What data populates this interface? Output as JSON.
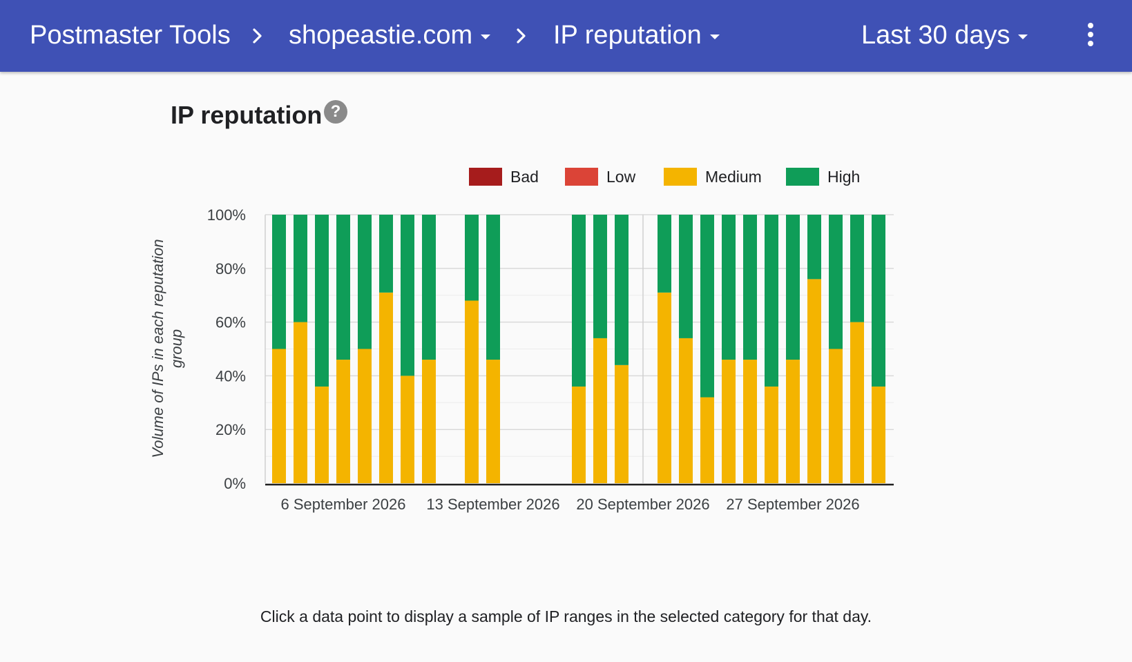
{
  "header": {
    "app_title": "Postmaster Tools",
    "domain": "shopeastie.com",
    "report": "IP reputation",
    "range": "Last 30 days",
    "background": "#3f51b5"
  },
  "page": {
    "title": "IP reputation",
    "help_glyph": "?",
    "footer_note": "Click a data point to display a sample of IP ranges in the selected category for that day."
  },
  "chart_data": {
    "type": "bar",
    "stacked": true,
    "ylabel": "Volume of IPs in each reputation group",
    "ylim": [
      0,
      100
    ],
    "y_ticks": [
      "0%",
      "20%",
      "40%",
      "60%",
      "80%",
      "100%"
    ],
    "x_ticks": [
      {
        "label": "6 September 2026",
        "date": "2026-09-06"
      },
      {
        "label": "13 September 2026",
        "date": "2026-09-13"
      },
      {
        "label": "20 September 2026",
        "date": "2026-09-20"
      },
      {
        "label": "27 September 2026",
        "date": "2026-09-27"
      }
    ],
    "legend": [
      {
        "name": "Bad",
        "color": "#a61c1c"
      },
      {
        "name": "Low",
        "color": "#db4437"
      },
      {
        "name": "Medium",
        "color": "#f4b400"
      },
      {
        "name": "High",
        "color": "#0f9d58"
      }
    ],
    "days": [
      {
        "date": "2026-09-03",
        "bad": 0,
        "low": 0,
        "medium": 50,
        "high": 50
      },
      {
        "date": "2026-09-04",
        "bad": 0,
        "low": 0,
        "medium": 60,
        "high": 40
      },
      {
        "date": "2026-09-05",
        "bad": 0,
        "low": 0,
        "medium": 36,
        "high": 64
      },
      {
        "date": "2026-09-06",
        "bad": 0,
        "low": 0,
        "medium": 46,
        "high": 54
      },
      {
        "date": "2026-09-07",
        "bad": 0,
        "low": 0,
        "medium": 50,
        "high": 50
      },
      {
        "date": "2026-09-08",
        "bad": 0,
        "low": 0,
        "medium": 71,
        "high": 29
      },
      {
        "date": "2026-09-09",
        "bad": 0,
        "low": 0,
        "medium": 40,
        "high": 60
      },
      {
        "date": "2026-09-10",
        "bad": 0,
        "low": 0,
        "medium": 46,
        "high": 54
      },
      {
        "date": "2026-09-12",
        "bad": 0,
        "low": 0,
        "medium": 68,
        "high": 32
      },
      {
        "date": "2026-09-13",
        "bad": 0,
        "low": 0,
        "medium": 46,
        "high": 54
      },
      {
        "date": "2026-09-17",
        "bad": 0,
        "low": 0,
        "medium": 36,
        "high": 64
      },
      {
        "date": "2026-09-18",
        "bad": 0,
        "low": 0,
        "medium": 54,
        "high": 46
      },
      {
        "date": "2026-09-19",
        "bad": 0,
        "low": 0,
        "medium": 44,
        "high": 56
      },
      {
        "date": "2026-09-21",
        "bad": 0,
        "low": 0,
        "medium": 71,
        "high": 29
      },
      {
        "date": "2026-09-22",
        "bad": 0,
        "low": 0,
        "medium": 54,
        "high": 46
      },
      {
        "date": "2026-09-23",
        "bad": 0,
        "low": 0,
        "medium": 32,
        "high": 68
      },
      {
        "date": "2026-09-24",
        "bad": 0,
        "low": 0,
        "medium": 46,
        "high": 54
      },
      {
        "date": "2026-09-25",
        "bad": 0,
        "low": 0,
        "medium": 46,
        "high": 54
      },
      {
        "date": "2026-09-26",
        "bad": 0,
        "low": 0,
        "medium": 36,
        "high": 64
      },
      {
        "date": "2026-09-27",
        "bad": 0,
        "low": 0,
        "medium": 46,
        "high": 54
      },
      {
        "date": "2026-09-28",
        "bad": 0,
        "low": 0,
        "medium": 76,
        "high": 24
      },
      {
        "date": "2026-09-29",
        "bad": 0,
        "low": 0,
        "medium": 50,
        "high": 50
      },
      {
        "date": "2026-09-30",
        "bad": 0,
        "low": 0,
        "medium": 60,
        "high": 40
      },
      {
        "date": "2026-10-01",
        "bad": 0,
        "low": 0,
        "medium": 36,
        "high": 64
      }
    ]
  }
}
